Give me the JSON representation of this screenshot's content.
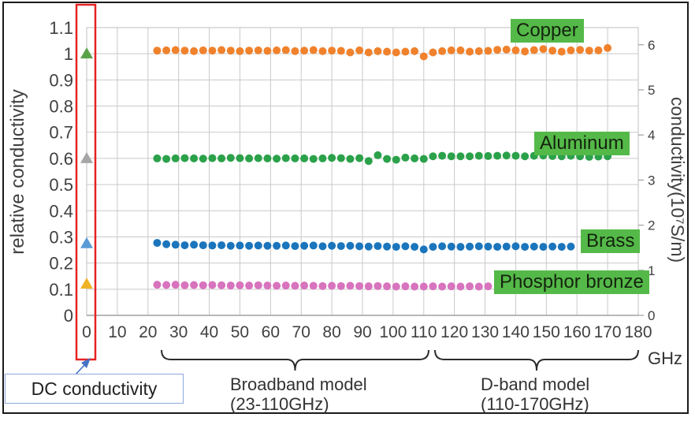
{
  "chart_data": {
    "type": "scatter",
    "title": "",
    "x_axis": {
      "unit": "GHz",
      "range": [
        0,
        180
      ],
      "ticks": [
        0,
        10,
        20,
        30,
        40,
        50,
        60,
        70,
        80,
        90,
        100,
        110,
        120,
        130,
        140,
        150,
        160,
        170,
        180
      ],
      "grid": true
    },
    "left_axis": {
      "title": "relative conductivity",
      "range": [
        0,
        1.1
      ],
      "ticks": [
        "0",
        "0.1",
        "0.2",
        "0.3",
        "0.4",
        "0.5",
        "0.6",
        "0.7",
        "0.8",
        "0.9",
        "1",
        "1.1"
      ],
      "grid": true
    },
    "right_axis": {
      "title": "conductivity(10⁷S/m)",
      "ticks": [
        0,
        1,
        2,
        3,
        4,
        5,
        6
      ],
      "left_units_per_right_unit": 0.1724
    },
    "series": [
      {
        "name": "Copper",
        "color": "#F0822D",
        "x_start": 23,
        "x_step": 3,
        "values": [
          1.012,
          1.013,
          1.014,
          1.012,
          1.01,
          1.013,
          1.012,
          1.014,
          1.012,
          1.01,
          1.012,
          1.013,
          1.011,
          1.013,
          1.014,
          1.01,
          1.012,
          1.014,
          1.01,
          1.012,
          1.011,
          1.005,
          1.013,
          1.005,
          1.01,
          1.008,
          1.005,
          1.008,
          1.01,
          0.99,
          1.005,
          1.01,
          1.013,
          1.013,
          1.008,
          1.01,
          1.011,
          1.015,
          1.016,
          1.013,
          1.009,
          1.014,
          1.018,
          1.012,
          1.008,
          1.013,
          1.015,
          1.012,
          1.013,
          1.022
        ]
      },
      {
        "name": "Aluminum",
        "color": "#2BA14A",
        "x_start": 23,
        "x_step": 3,
        "values": [
          0.6,
          0.598,
          0.6,
          0.601,
          0.6,
          0.599,
          0.601,
          0.6,
          0.602,
          0.601,
          0.6,
          0.601,
          0.6,
          0.599,
          0.601,
          0.6,
          0.6,
          0.598,
          0.6,
          0.602,
          0.601,
          0.598,
          0.601,
          0.59,
          0.612,
          0.598,
          0.595,
          0.603,
          0.6,
          0.598,
          0.608,
          0.61,
          0.608,
          0.608,
          0.608,
          0.61,
          0.609,
          0.61,
          0.611,
          0.61,
          0.608,
          0.61,
          0.611,
          0.609,
          0.608,
          0.61,
          0.608,
          0.606,
          0.607,
          0.608
        ]
      },
      {
        "name": "Brass",
        "color": "#1B75BC",
        "x_start": 23,
        "x_step": 3,
        "values": [
          0.277,
          0.272,
          0.27,
          0.268,
          0.27,
          0.268,
          0.267,
          0.268,
          0.266,
          0.267,
          0.266,
          0.267,
          0.266,
          0.266,
          0.267,
          0.265,
          0.266,
          0.267,
          0.264,
          0.266,
          0.265,
          0.266,
          0.264,
          0.263,
          0.265,
          0.263,
          0.262,
          0.264,
          0.262,
          0.252,
          0.262,
          0.264,
          0.263,
          0.262,
          0.263,
          0.264,
          0.263,
          0.262,
          0.263,
          0.264,
          0.262,
          0.263,
          0.262,
          0.263,
          0.262,
          0.263
        ]
      },
      {
        "name": "Phosphor bronze",
        "color": "#D873BE",
        "x_start": 23,
        "x_step": 3,
        "values": [
          0.117,
          0.116,
          0.117,
          0.115,
          0.116,
          0.115,
          0.116,
          0.115,
          0.114,
          0.115,
          0.114,
          0.115,
          0.114,
          0.113,
          0.114,
          0.113,
          0.114,
          0.113,
          0.112,
          0.113,
          0.112,
          0.113,
          0.112,
          0.111,
          0.112,
          0.111,
          0.11,
          0.111,
          0.11,
          0.11,
          0.111,
          0.11,
          0.111,
          0.11,
          0.111,
          0.11,
          0.111
        ]
      }
    ],
    "dc_points": [
      {
        "material": "Copper",
        "x": 0,
        "relative_value": 1.0,
        "marker": "triangle",
        "color": "#5AA248"
      },
      {
        "material": "Aluminum",
        "x": 0,
        "relative_value": 0.6,
        "marker": "triangle",
        "color": "#A6A6A6"
      },
      {
        "material": "Brass",
        "x": 0,
        "relative_value": 0.275,
        "marker": "triangle",
        "color": "#5B9BD5"
      },
      {
        "material": "Phosphor bronze",
        "x": 0,
        "relative_value": 0.12,
        "marker": "triangle",
        "color": "#EFB32A"
      }
    ]
  },
  "annotations": {
    "dc_callout": "DC conductivity",
    "broadband_line1": "Broadband model",
    "broadband_line2": "(23-110GHz)",
    "broadband_range_ghz": [
      23,
      110
    ],
    "dband_line1": "D-band model",
    "dband_line2": "(110-170GHz)",
    "dband_range_ghz": [
      110,
      170
    ],
    "ghz_label": "GHz"
  },
  "colors": {
    "grid": "#C9C9C9",
    "plot_border": "#BFBFBF",
    "axis_line": "#A0A0A0",
    "tick_text": "#404040",
    "label_bg": "#54B948",
    "red_box": "#E62222",
    "callout_border": "#8EA9DB",
    "arrow": "#4472C4",
    "brace": "#2B2B2B"
  }
}
